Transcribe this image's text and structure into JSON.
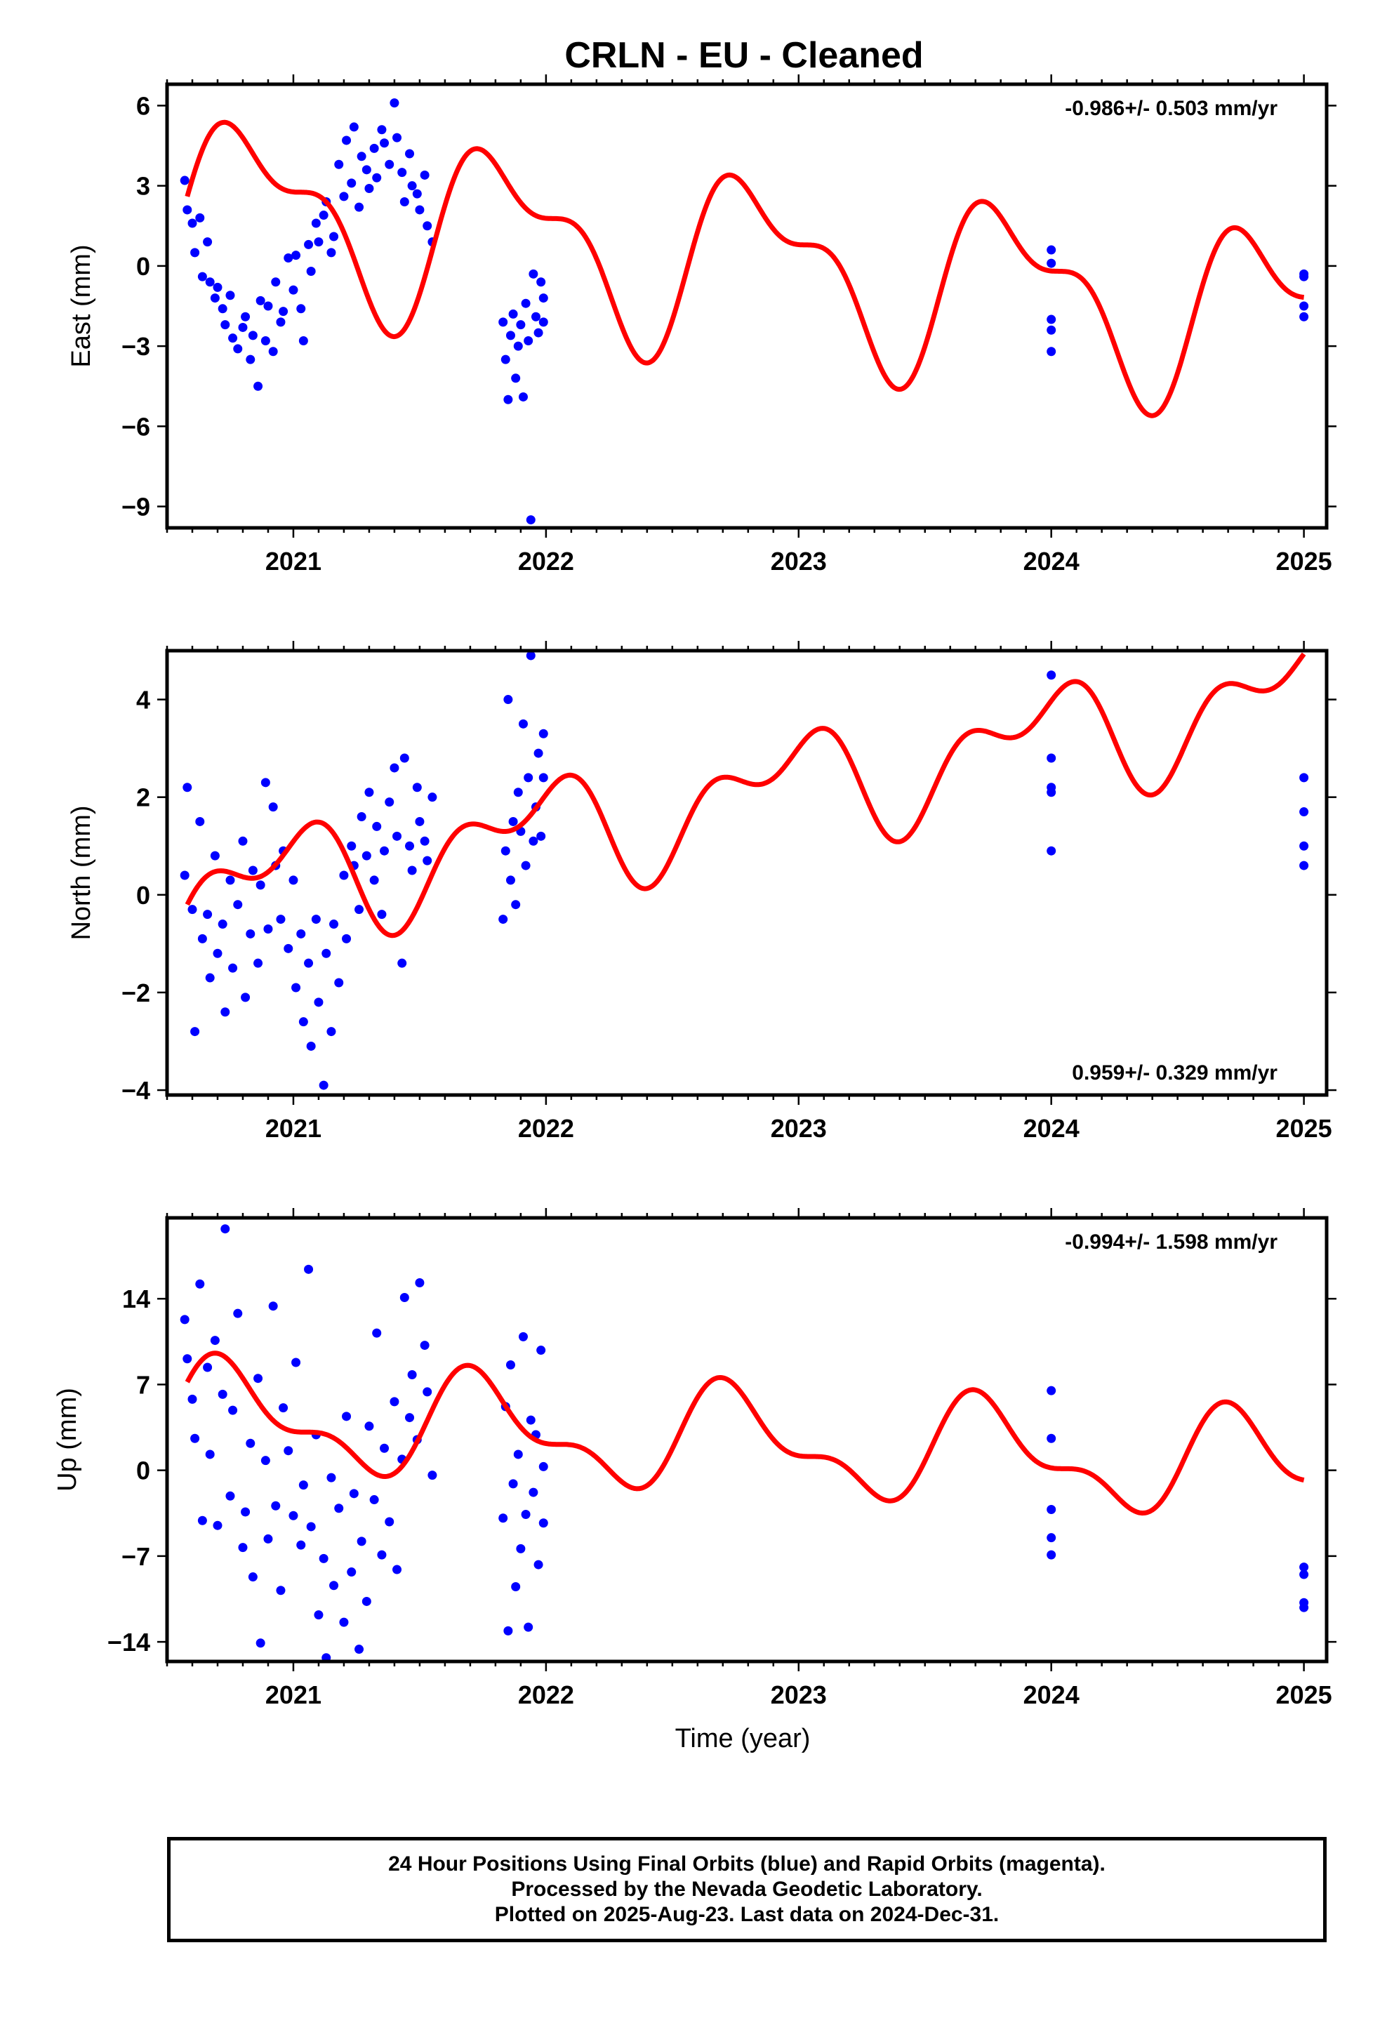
{
  "title": "CRLN  - EU - Cleaned",
  "footer": {
    "line1": "24 Hour Positions Using Final Orbits (blue) and Rapid Orbits (magenta).",
    "line2": "Processed by the Nevada Geodetic Laboratory.",
    "line3": "Plotted on 2025-Aug-23. Last data on 2024-Dec-31."
  },
  "colors": {
    "data_points": "#0000ff",
    "model_fit": "#ff0000",
    "axes": "#000000"
  },
  "chart_data": [
    {
      "type": "scatter",
      "ylabel": "East (mm)",
      "xlabel": "",
      "xlim": [
        2020.5,
        2025.09
      ],
      "ylim": [
        -9.8,
        6.8
      ],
      "yticks": [
        6,
        3,
        0,
        -3,
        -6,
        -9
      ],
      "xticks": [
        2021,
        2022,
        2023,
        2024,
        2025
      ],
      "rate_label": "-0.986+/- 0.503 mm/yr",
      "rate_position": "top-right",
      "grid": false,
      "model_fit": {
        "trend": -0.986,
        "anchor_year": 2020.58,
        "anchor_value": 2.6,
        "a1": 2.9,
        "b1": -0.3,
        "a2": 1.3,
        "b2": 0.6
      },
      "series": [
        {
          "x": [
            2020.57,
            2020.58,
            2020.6,
            2020.61,
            2020.63,
            2020.64,
            2020.66,
            2020.67,
            2020.69,
            2020.7,
            2020.72,
            2020.73,
            2020.75,
            2020.76,
            2020.78,
            2020.8,
            2020.81,
            2020.83,
            2020.84,
            2020.86,
            2020.87,
            2020.89,
            2020.9,
            2020.92,
            2020.93,
            2020.95,
            2020.96,
            2020.98,
            2021.0,
            2021.01,
            2021.03,
            2021.04,
            2021.06,
            2021.07,
            2021.09,
            2021.1,
            2021.12,
            2021.13,
            2021.15,
            2021.16,
            2021.18,
            2021.2,
            2021.21,
            2021.23,
            2021.24,
            2021.26,
            2021.27,
            2021.29,
            2021.3,
            2021.32,
            2021.33,
            2021.35,
            2021.36,
            2021.38,
            2021.4,
            2021.41,
            2021.43,
            2021.44,
            2021.46,
            2021.47,
            2021.49,
            2021.5,
            2021.52,
            2021.53,
            2021.55,
            2021.83,
            2021.84,
            2021.85,
            2021.86,
            2021.87,
            2021.88,
            2021.89,
            2021.9,
            2021.91,
            2021.92,
            2021.93,
            2021.94,
            2021.95,
            2021.96,
            2021.97,
            2021.98,
            2021.99,
            2021.99,
            2024.0,
            2024.0,
            2024.0,
            2024.0,
            2024.0,
            2025.0,
            2025.0,
            2025.0,
            2025.0
          ],
          "y": [
            3.2,
            2.1,
            1.6,
            0.5,
            1.8,
            -0.4,
            0.9,
            -0.6,
            -1.2,
            -0.8,
            -1.6,
            -2.2,
            -1.1,
            -2.7,
            -3.1,
            -2.3,
            -1.9,
            -3.5,
            -2.6,
            -4.5,
            -1.3,
            -2.8,
            -1.5,
            -3.2,
            -0.6,
            -2.1,
            -1.7,
            0.3,
            -0.9,
            0.4,
            -1.6,
            -2.8,
            0.8,
            -0.2,
            1.6,
            0.9,
            1.9,
            2.4,
            0.5,
            1.1,
            3.8,
            2.6,
            4.7,
            3.1,
            5.2,
            2.2,
            4.1,
            3.6,
            2.9,
            4.4,
            3.3,
            5.1,
            4.6,
            3.8,
            6.1,
            4.8,
            3.5,
            2.4,
            4.2,
            3.0,
            2.7,
            2.1,
            3.4,
            1.5,
            0.9,
            -2.1,
            -3.5,
            -5.0,
            -2.6,
            -1.8,
            -4.2,
            -3.0,
            -2.2,
            -4.9,
            -1.4,
            -2.8,
            -9.5,
            -0.3,
            -1.9,
            -2.5,
            -0.6,
            -1.2,
            -2.1,
            0.6,
            0.1,
            -2.0,
            -2.4,
            -3.2,
            -0.3,
            -0.4,
            -1.5,
            -1.9
          ]
        }
      ]
    },
    {
      "type": "scatter",
      "ylabel": "North (mm)",
      "xlabel": "",
      "xlim": [
        2020.5,
        2025.09
      ],
      "ylim": [
        -4.1,
        5.0
      ],
      "yticks": [
        4,
        2,
        0,
        -2,
        -4
      ],
      "xticks": [
        2021,
        2022,
        2023,
        2024,
        2025
      ],
      "rate_label": "0.959+/- 0.329 mm/yr",
      "rate_position": "bottom-right",
      "grid": false,
      "model_fit": {
        "trend": 0.959,
        "anchor_year": 2020.58,
        "anchor_value": -0.2,
        "a1": 0.7,
        "b1": -0.6,
        "a2": 0.4,
        "b2": 0.5
      },
      "series": [
        {
          "x": [
            2020.57,
            2020.58,
            2020.6,
            2020.61,
            2020.63,
            2020.64,
            2020.66,
            2020.67,
            2020.69,
            2020.7,
            2020.72,
            2020.73,
            2020.75,
            2020.76,
            2020.78,
            2020.8,
            2020.81,
            2020.83,
            2020.84,
            2020.86,
            2020.87,
            2020.89,
            2020.9,
            2020.92,
            2020.93,
            2020.95,
            2020.96,
            2020.98,
            2021.0,
            2021.01,
            2021.03,
            2021.04,
            2021.06,
            2021.07,
            2021.09,
            2021.1,
            2021.12,
            2021.13,
            2021.15,
            2021.16,
            2021.18,
            2021.2,
            2021.21,
            2021.23,
            2021.24,
            2021.26,
            2021.27,
            2021.29,
            2021.3,
            2021.32,
            2021.33,
            2021.35,
            2021.36,
            2021.38,
            2021.4,
            2021.41,
            2021.43,
            2021.44,
            2021.46,
            2021.47,
            2021.49,
            2021.5,
            2021.52,
            2021.53,
            2021.55,
            2021.83,
            2021.84,
            2021.85,
            2021.86,
            2021.87,
            2021.88,
            2021.89,
            2021.9,
            2021.91,
            2021.92,
            2021.93,
            2021.94,
            2021.95,
            2021.96,
            2021.97,
            2021.98,
            2021.99,
            2021.99,
            2024.0,
            2024.0,
            2024.0,
            2024.0,
            2024.0,
            2025.0,
            2025.0,
            2025.0,
            2025.0
          ],
          "y": [
            0.4,
            2.2,
            -0.3,
            -2.8,
            1.5,
            -0.9,
            -0.4,
            -1.7,
            0.8,
            -1.2,
            -0.6,
            -2.4,
            0.3,
            -1.5,
            -0.2,
            1.1,
            -2.1,
            -0.8,
            0.5,
            -1.4,
            0.2,
            2.3,
            -0.7,
            1.8,
            0.6,
            -0.5,
            0.9,
            -1.1,
            0.3,
            -1.9,
            -0.8,
            -2.6,
            -1.4,
            -3.1,
            -0.5,
            -2.2,
            -3.9,
            -1.2,
            -2.8,
            -0.6,
            -1.8,
            0.4,
            -0.9,
            1.0,
            0.6,
            -0.3,
            1.6,
            0.8,
            2.1,
            0.3,
            1.4,
            -0.4,
            0.9,
            1.9,
            2.6,
            1.2,
            -1.4,
            2.8,
            1.0,
            0.5,
            2.2,
            1.5,
            1.1,
            0.7,
            2.0,
            -0.5,
            0.9,
            4.0,
            0.3,
            1.5,
            -0.2,
            2.1,
            1.3,
            3.5,
            0.6,
            2.4,
            4.9,
            1.1,
            1.8,
            2.9,
            1.2,
            3.3,
            2.4,
            4.5,
            2.2,
            2.1,
            0.9,
            2.8,
            2.4,
            1.7,
            1.0,
            0.6
          ]
        }
      ]
    },
    {
      "type": "scatter",
      "ylabel": "Up (mm)",
      "xlabel": "Time (year)",
      "xlim": [
        2020.5,
        2025.09
      ],
      "ylim": [
        -15.6,
        20.6
      ],
      "yticks": [
        14,
        7,
        0,
        -7,
        -14
      ],
      "xticks": [
        2021,
        2022,
        2023,
        2024,
        2025
      ],
      "rate_label": "-0.994+/- 1.598 mm/yr",
      "rate_position": "top-right",
      "grid": false,
      "model_fit": {
        "trend": -0.994,
        "anchor_year": 2020.58,
        "anchor_value": 7.2,
        "a1": 3.2,
        "b1": 1.8,
        "a2": 1.6,
        "b2": 0.9
      },
      "series": [
        {
          "x": [
            2020.57,
            2020.58,
            2020.6,
            2020.61,
            2020.63,
            2020.64,
            2020.66,
            2020.67,
            2020.69,
            2020.7,
            2020.72,
            2020.73,
            2020.75,
            2020.76,
            2020.78,
            2020.8,
            2020.81,
            2020.83,
            2020.84,
            2020.86,
            2020.87,
            2020.89,
            2020.9,
            2020.92,
            2020.93,
            2020.95,
            2020.96,
            2020.98,
            2021.0,
            2021.01,
            2021.03,
            2021.04,
            2021.06,
            2021.07,
            2021.09,
            2021.1,
            2021.12,
            2021.13,
            2021.15,
            2021.16,
            2021.18,
            2021.2,
            2021.21,
            2021.23,
            2021.24,
            2021.26,
            2021.27,
            2021.29,
            2021.3,
            2021.32,
            2021.33,
            2021.35,
            2021.36,
            2021.38,
            2021.4,
            2021.41,
            2021.43,
            2021.44,
            2021.46,
            2021.47,
            2021.49,
            2021.5,
            2021.52,
            2021.53,
            2021.55,
            2021.83,
            2021.84,
            2021.85,
            2021.86,
            2021.87,
            2021.88,
            2021.89,
            2021.9,
            2021.91,
            2021.92,
            2021.93,
            2021.94,
            2021.95,
            2021.96,
            2021.97,
            2021.98,
            2021.99,
            2021.99,
            2024.0,
            2024.0,
            2024.0,
            2024.0,
            2024.0,
            2025.0,
            2025.0,
            2025.0,
            2025.0
          ],
          "y": [
            12.3,
            9.1,
            5.8,
            2.6,
            15.2,
            -4.1,
            8.4,
            1.3,
            10.6,
            -4.5,
            6.2,
            19.7,
            -2.1,
            4.9,
            12.8,
            -6.3,
            -3.4,
            2.2,
            -8.7,
            7.5,
            -14.1,
            0.8,
            -5.6,
            13.4,
            -2.9,
            -9.8,
            5.1,
            1.6,
            -3.7,
            8.8,
            -6.1,
            -1.2,
            16.4,
            -4.6,
            2.9,
            -11.8,
            -7.2,
            -15.3,
            -0.6,
            -9.4,
            -3.1,
            -12.4,
            4.4,
            -8.3,
            -1.9,
            -14.6,
            -5.8,
            -10.7,
            3.6,
            -2.4,
            11.2,
            -6.9,
            1.8,
            -4.2,
            5.6,
            -8.1,
            0.9,
            14.1,
            4.3,
            7.8,
            2.5,
            15.3,
            10.2,
            6.4,
            -0.4,
            -3.9,
            5.2,
            -13.1,
            8.6,
            -1.1,
            -9.5,
            1.3,
            -6.4,
            10.9,
            -3.6,
            -12.8,
            4.1,
            -1.8,
            2.9,
            -7.7,
            9.8,
            -4.3,
            0.3,
            6.5,
            2.6,
            -3.2,
            -5.5,
            -6.9,
            -7.9,
            -8.5,
            -10.8,
            -11.2
          ]
        }
      ]
    }
  ]
}
